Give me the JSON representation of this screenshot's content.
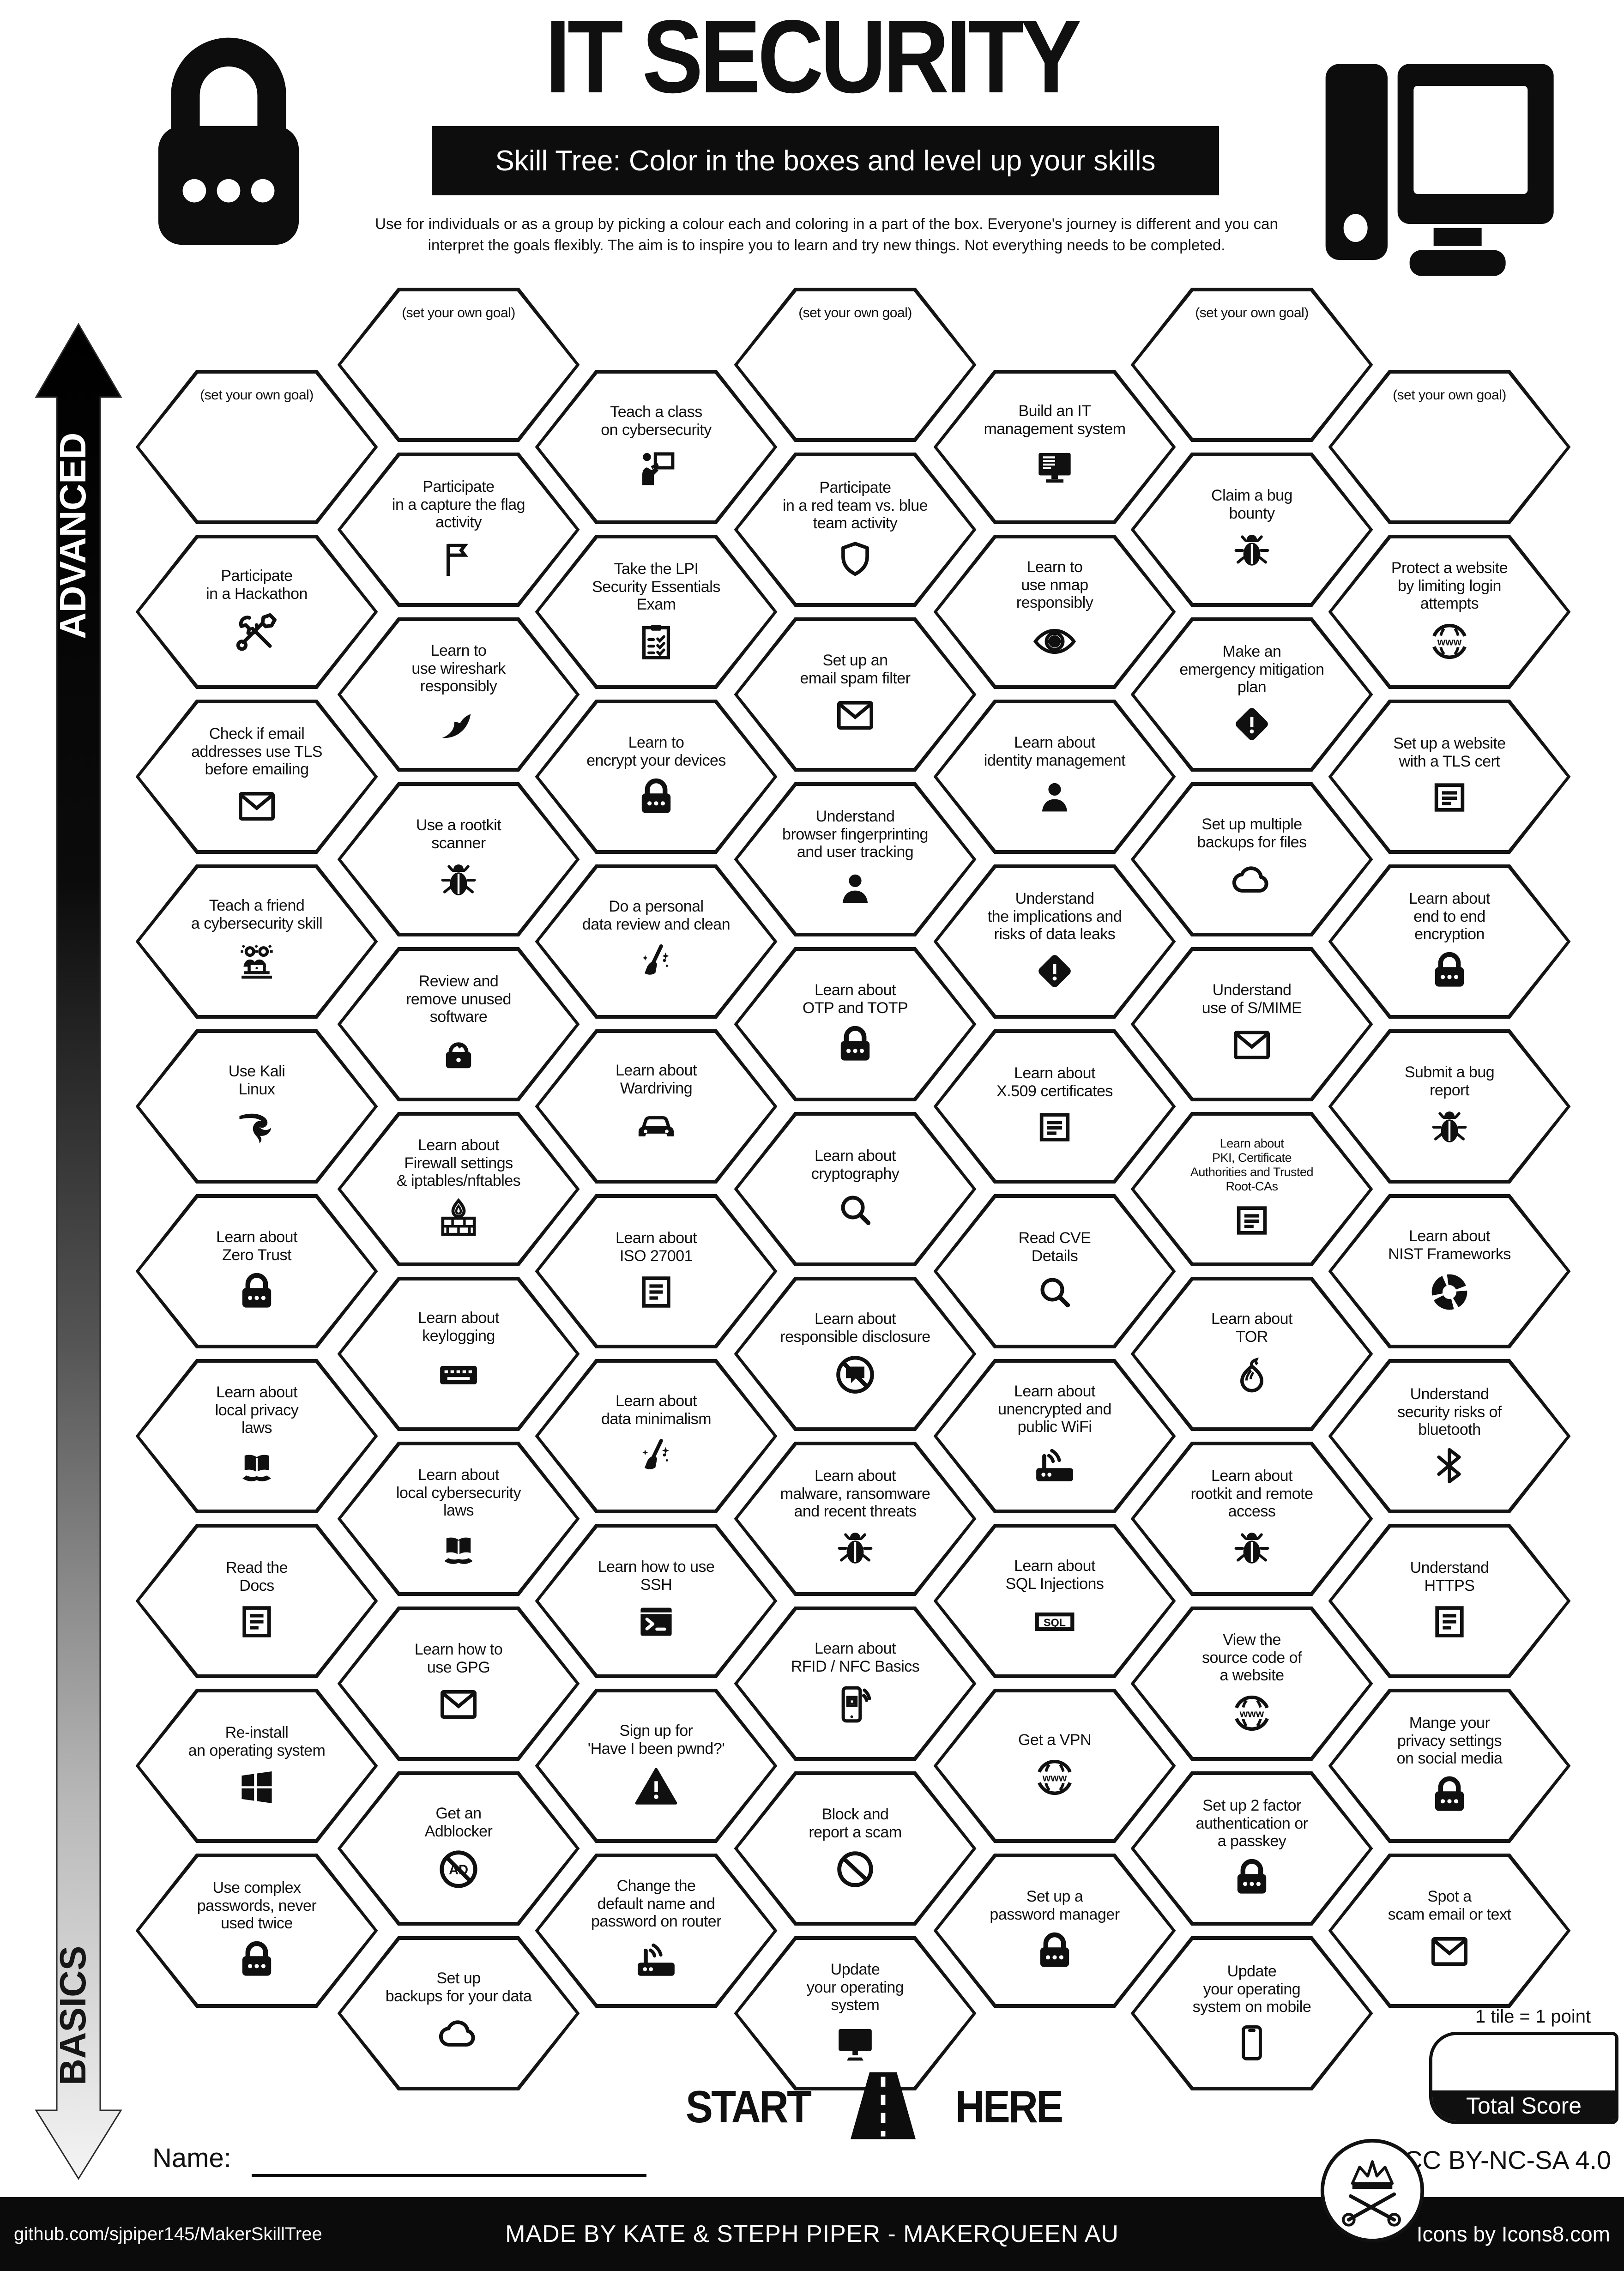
{
  "header": {
    "title": "IT SECURITY",
    "subtitle": "Skill Tree:  Color in the boxes and level up your skills",
    "description": "Use for individuals or as a group by picking a colour each and coloring in a part of the box.  Everyone's journey is different and you can\ninterpret the goals flexibly.  The aim is to inspire you to learn and try new things. Not everything needs to be completed."
  },
  "axis": {
    "advanced": "ADVANCED",
    "basics": "BASICS"
  },
  "start": {
    "start": "START",
    "here": "HERE"
  },
  "name": {
    "label": "Name:"
  },
  "score": {
    "note": "1 tile = 1 point",
    "total": "Total Score"
  },
  "license": {
    "text": "CC BY-NC-SA 4.0"
  },
  "footer": {
    "left": "github.com/sjpiper145/MakerSkillTree",
    "center": "MADE BY KATE & STEPH PIPER  -  MAKERQUEEN AU",
    "right": "Icons by Icons8.com"
  },
  "colors": {
    "ink": "#101010",
    "paper": "#ffffff"
  },
  "columns": [
    {
      "tiles": [
        {
          "label": "(set your own goal)",
          "goal": true
        },
        {
          "label": "Participate\nin a Hackathon",
          "icon": "tools"
        },
        {
          "label": "Check if email\naddresses use TLS\nbefore emailing",
          "icon": "envelope"
        },
        {
          "label": "Teach a friend\na cybersecurity skill",
          "icon": "people-laptop"
        },
        {
          "label": "Use Kali\nLinux",
          "icon": "kali-dragon"
        },
        {
          "label": "Learn about\nZero Trust",
          "icon": "padlock"
        },
        {
          "label": "Learn about\nlocal privacy\nlaws",
          "icon": "law-book"
        },
        {
          "label": "Read the\nDocs",
          "icon": "document"
        },
        {
          "label": "Re-install\nan operating system",
          "icon": "windows"
        },
        {
          "label": "Use complex\npasswords, never\nused twice",
          "icon": "padlock"
        }
      ]
    },
    {
      "tiles": [
        {
          "label": "(set your own goal)",
          "goal": true
        },
        {
          "label": "Participate\nin a capture the flag\nactivity",
          "icon": "flag"
        },
        {
          "label": "Learn to\nuse wireshark\nresponsibly",
          "icon": "shark-fin"
        },
        {
          "label": "Use a rootkit\nscanner",
          "icon": "bug"
        },
        {
          "label": "Review and\nremove unused\nsoftware",
          "icon": "cleanup-lock"
        },
        {
          "label": "Learn about\nFirewall settings\n& iptables/nftables",
          "icon": "firewall"
        },
        {
          "label": "Learn about\nkeylogging",
          "icon": "keyboard"
        },
        {
          "label": "Learn about\nlocal cybersecurity\nlaws",
          "icon": "law-book"
        },
        {
          "label": "Learn how to\nuse GPG",
          "icon": "envelope"
        },
        {
          "label": "Get an\nAdblocker",
          "icon": "adblock"
        },
        {
          "label": "Set up\nbackups for your data",
          "icon": "cloud"
        }
      ]
    },
    {
      "tiles": [
        {
          "label": "Teach a class\non cybersecurity",
          "icon": "teacher"
        },
        {
          "label": "Take the LPI\nSecurity Essentials\nExam",
          "icon": "clipboard"
        },
        {
          "label": "Learn to\nencrypt your devices",
          "icon": "padlock"
        },
        {
          "label": "Do a personal\ndata review and clean",
          "icon": "broom"
        },
        {
          "label": "Learn about\nWardriving",
          "icon": "car"
        },
        {
          "label": "Learn about\nISO 27001",
          "icon": "document"
        },
        {
          "label": "Learn about\ndata minimalism",
          "icon": "broom"
        },
        {
          "label": "Learn how to use\nSSH",
          "icon": "terminal"
        },
        {
          "label": "Sign up for\n'Have I been pwnd?'",
          "icon": "warning-triangle"
        },
        {
          "label": "Change the\ndefault name and\npassword on router",
          "icon": "router"
        }
      ]
    },
    {
      "tiles": [
        {
          "label": "(set your own goal)",
          "goal": true
        },
        {
          "label": "Participate\nin a red team vs. blue\nteam activity",
          "icon": "shield"
        },
        {
          "label": "Set up an\nemail spam filter",
          "icon": "envelope"
        },
        {
          "label": "Understand\nbrowser fingerprinting\nand user tracking",
          "icon": "person"
        },
        {
          "label": "Learn about\nOTP and TOTP",
          "icon": "padlock"
        },
        {
          "label": "Learn about\ncryptography",
          "icon": "magnifier"
        },
        {
          "label": "Learn about\nresponsible disclosure",
          "icon": "no-speech"
        },
        {
          "label": "Learn about\nmalware, ransomware\nand recent threats",
          "icon": "bug"
        },
        {
          "label": "Learn about\nRFID / NFC Basics",
          "icon": "phone-nfc"
        },
        {
          "label": "Block and\nreport a scam",
          "icon": "no-entry"
        },
        {
          "label": "Update\nyour operating\nsystem",
          "icon": "monitor"
        }
      ]
    },
    {
      "tiles": [
        {
          "label": "Build an IT\nmanagement system",
          "icon": "computer-system"
        },
        {
          "label": "Learn to\nuse nmap\nresponsibly",
          "icon": "eye-scan"
        },
        {
          "label": "Learn about\nidentity management",
          "icon": "person"
        },
        {
          "label": "Understand\nthe implications and\nrisks of data leaks",
          "icon": "warning-diamond"
        },
        {
          "label": "Learn about\nX.509 certificates",
          "icon": "certificate"
        },
        {
          "label": "Read CVE\nDetails",
          "icon": "magnifier"
        },
        {
          "label": "Learn about\nunencrypted and\npublic WiFi",
          "icon": "router"
        },
        {
          "label": "Learn about\nSQL Injections",
          "icon": "sql"
        },
        {
          "label": "Get a VPN",
          "icon": "globe-www"
        },
        {
          "label": "Set up a\npassword manager",
          "icon": "padlock"
        }
      ]
    },
    {
      "tiles": [
        {
          "label": "(set your own goal)",
          "goal": true
        },
        {
          "label": "Claim a bug\nbounty",
          "icon": "bug"
        },
        {
          "label": "Make an\nemergency mitigation\nplan",
          "icon": "warning-diamond"
        },
        {
          "label": "Set up multiple\nbackups for files",
          "icon": "cloud"
        },
        {
          "label": "Understand\nuse of S/MIME",
          "icon": "envelope"
        },
        {
          "label": "Learn about\nPKI, Certificate\nAuthorities and Trusted\nRoot-CAs",
          "icon": "certificate",
          "small": true
        },
        {
          "label": "Learn about\nTOR",
          "icon": "tor-onion"
        },
        {
          "label": "Learn about\nrootkit and remote\naccess",
          "icon": "bug"
        },
        {
          "label": "View the\nsource code of\na website",
          "icon": "globe-www"
        },
        {
          "label": "Set up 2 factor\nauthentication or\na passkey",
          "icon": "padlock"
        },
        {
          "label": "Update\nyour operating\nsystem on mobile",
          "icon": "smartphone"
        }
      ]
    },
    {
      "tiles": [
        {
          "label": "(set your own goal)",
          "goal": true
        },
        {
          "label": "Protect a website\nby limiting login\nattempts",
          "icon": "globe-www"
        },
        {
          "label": "Set up a website\nwith a TLS cert",
          "icon": "certificate"
        },
        {
          "label": "Learn about\nend to end\nencryption",
          "icon": "padlock"
        },
        {
          "label": "Submit a bug\nreport",
          "icon": "bug"
        },
        {
          "label": "Learn about\nNIST Frameworks",
          "icon": "donut-segments"
        },
        {
          "label": "Understand\nsecurity risks of\nbluetooth",
          "icon": "bluetooth"
        },
        {
          "label": "Understand\nHTTPS",
          "icon": "document"
        },
        {
          "label": "Mange your\nprivacy settings\non social media",
          "icon": "padlock"
        },
        {
          "label": "Spot a\nscam email or text",
          "icon": "envelope"
        }
      ]
    }
  ]
}
